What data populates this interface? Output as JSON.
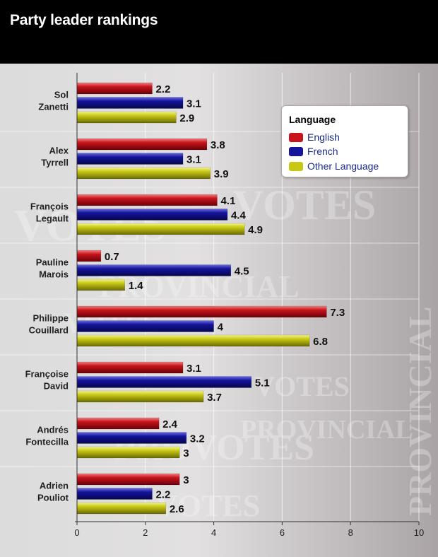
{
  "header": {
    "title": "Party leader rankings"
  },
  "legend": {
    "title": "Language",
    "items": [
      "English",
      "French",
      "Other Language"
    ]
  },
  "colors": {
    "english": "#c8141c",
    "french": "#14149c",
    "other": "#c8c814",
    "header_bg": "#000000"
  },
  "chart_data": {
    "type": "bar",
    "orientation": "horizontal",
    "categories": [
      [
        "Sol",
        "Zanetti"
      ],
      [
        "Alex",
        "Tyrrell"
      ],
      [
        "François",
        "Legault"
      ],
      [
        "Pauline",
        "Marois"
      ],
      [
        "Philippe",
        "Couillard"
      ],
      [
        "Françoise",
        "David"
      ],
      [
        "Andrés",
        "Fontecilla"
      ],
      [
        "Adrien",
        "Pouliot"
      ]
    ],
    "series": [
      {
        "name": "English",
        "values": [
          2.2,
          3.8,
          4.1,
          0.7,
          7.3,
          3.1,
          2.4,
          3
        ]
      },
      {
        "name": "French",
        "values": [
          3.1,
          3.1,
          4.4,
          4.5,
          4,
          5.1,
          3.2,
          2.2
        ]
      },
      {
        "name": "Other Language",
        "values": [
          2.9,
          3.9,
          4.9,
          1.4,
          6.8,
          3.7,
          3,
          2.6
        ]
      }
    ],
    "value_labels": [
      [
        "2.2",
        "3.1",
        "2.9"
      ],
      [
        "3.8",
        "3.1",
        "3.9"
      ],
      [
        "4.1",
        "4.4",
        "4.9"
      ],
      [
        "0.7",
        "4.5",
        "1.4"
      ],
      [
        "7.3",
        "4",
        "6.8"
      ],
      [
        "3.1",
        "5.1",
        "3.7"
      ],
      [
        "2.4",
        "3.2",
        "3"
      ],
      [
        "3",
        "2.2",
        "2.6"
      ]
    ],
    "xlim": [
      0,
      10
    ],
    "xticks": [
      0,
      2,
      4,
      6,
      8,
      10
    ],
    "grid": true,
    "legend_position": "top-right"
  }
}
